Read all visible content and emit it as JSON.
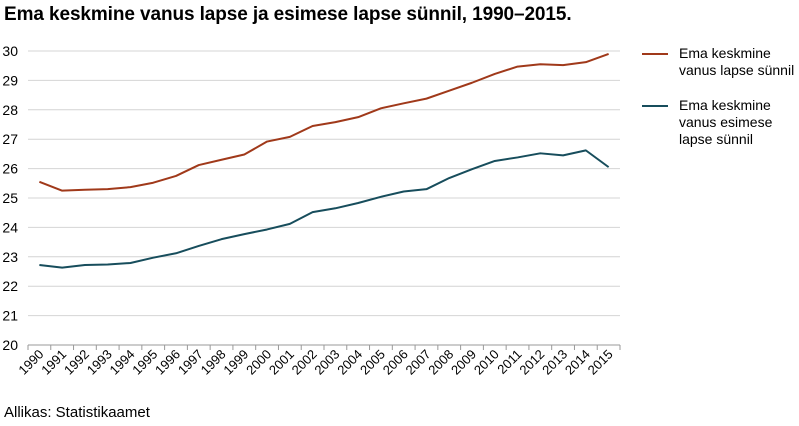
{
  "title": "Ema keskmine vanus lapse ja esimese lapse sünnil, 1990–2015.",
  "source": "Allikas: Statistikaamet",
  "chart_data": {
    "type": "line",
    "x": [
      "1990",
      "1991",
      "1992",
      "1993",
      "1994",
      "1995",
      "1996",
      "1997",
      "1998",
      "1999",
      "2000",
      "2001",
      "2002",
      "2003",
      "2004",
      "2005",
      "2006",
      "2007",
      "2008",
      "2009",
      "2010",
      "2011",
      "2012",
      "2013",
      "2014",
      "2015"
    ],
    "ylim": [
      20,
      30
    ],
    "yticks": [
      20,
      21,
      22,
      23,
      24,
      25,
      26,
      27,
      28,
      29,
      30
    ],
    "grid": true,
    "legend_position": "right",
    "series": [
      {
        "name": "Ema keskmine vanus lapse sünnil",
        "color": "#a0391a",
        "values": [
          25.55,
          25.25,
          25.28,
          25.3,
          25.37,
          25.52,
          25.75,
          26.12,
          26.3,
          26.48,
          26.92,
          27.08,
          27.45,
          27.58,
          27.75,
          28.05,
          28.22,
          28.38,
          28.65,
          28.92,
          29.22,
          29.47,
          29.55,
          29.52,
          29.62,
          29.9
        ]
      },
      {
        "name": "Ema keskmine vanus esimese lapse sünnil",
        "color": "#174d5c",
        "values": [
          22.72,
          22.63,
          22.72,
          22.74,
          22.79,
          22.97,
          23.12,
          23.37,
          23.6,
          23.77,
          23.93,
          24.12,
          24.52,
          24.65,
          24.83,
          25.04,
          25.22,
          25.3,
          25.68,
          25.98,
          26.26,
          26.38,
          26.52,
          26.45,
          26.62,
          26.05
        ]
      }
    ]
  }
}
